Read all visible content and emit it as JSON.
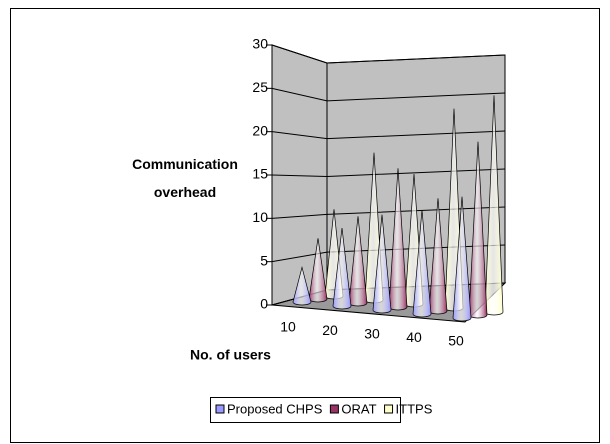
{
  "chart_data": {
    "type": "cone",
    "categories": [
      "10",
      "20",
      "30",
      "40",
      "50"
    ],
    "series": [
      {
        "name": "Proposed CHPS",
        "color": "#9999ff",
        "values": [
          4,
          9,
          11,
          12,
          14
        ]
      },
      {
        "name": "ORAT",
        "color": "#993366",
        "values": [
          7,
          10,
          16,
          13,
          20
        ]
      },
      {
        "name": "ITTPS",
        "color": "#ffffcc",
        "values": [
          10,
          17,
          15,
          23,
          25
        ]
      }
    ],
    "ylim": [
      0,
      30
    ],
    "yticks": [
      0,
      5,
      10,
      15,
      20,
      25,
      30
    ],
    "grid": true,
    "y_label": "Communication overhead",
    "x_label": "No. of users",
    "legend": "bottom"
  }
}
